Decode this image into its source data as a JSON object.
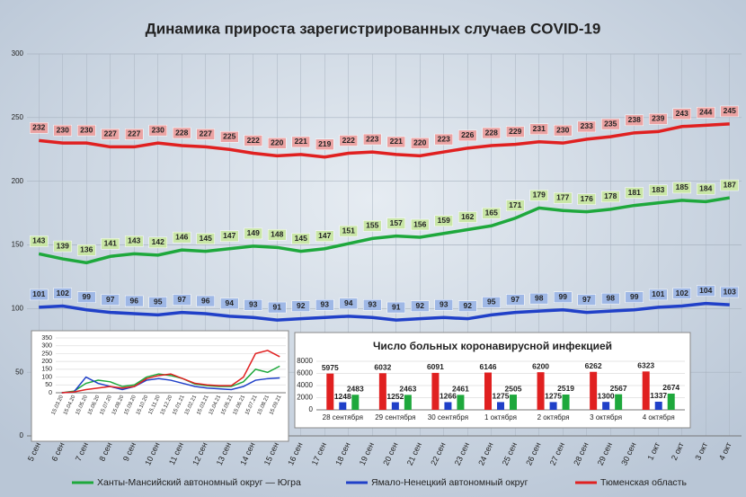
{
  "chart_data": [
    {
      "type": "line",
      "title": "Динамика прироста зарегистрированных случаев COVID-19",
      "categories": [
        "5 сен",
        "6 сен",
        "7 сен",
        "8 сен",
        "9 сен",
        "10 сен",
        "11 сен",
        "12 сен",
        "13 сен",
        "14 сен",
        "15 сен",
        "16 сен",
        "17 сен",
        "18 сен",
        "19 сен",
        "20 сен",
        "21 сен",
        "22 сен",
        "23 сен",
        "24 сен",
        "25 сен",
        "26 сен",
        "27 сен",
        "28 сен",
        "29 сен",
        "30 сен",
        "1 окт",
        "2 окт",
        "3 окт",
        "4 окт"
      ],
      "series": [
        {
          "name": "Ханты-Мансийский автономный округ — Югра",
          "color": "#1ea83c",
          "values": [
            143,
            139,
            136,
            141,
            143,
            142,
            146,
            145,
            147,
            149,
            148,
            145,
            147,
            151,
            155,
            157,
            156,
            159,
            162,
            165,
            171,
            179,
            177,
            176,
            178,
            181,
            183,
            185,
            184,
            187
          ]
        },
        {
          "name": "Ямало-Ненецкий автономный округ",
          "color": "#2040c8",
          "values": [
            101,
            102,
            99,
            97,
            96,
            95,
            97,
            96,
            94,
            93,
            91,
            92,
            93,
            94,
            93,
            91,
            92,
            93,
            92,
            95,
            97,
            98,
            99,
            97,
            98,
            99,
            101,
            102,
            104,
            103
          ]
        },
        {
          "name": "Тюменская область",
          "color": "#e02020",
          "values": [
            232,
            230,
            230,
            227,
            227,
            230,
            228,
            227,
            225,
            222,
            220,
            221,
            219,
            222,
            223,
            221,
            220,
            223,
            226,
            228,
            229,
            231,
            230,
            233,
            235,
            238,
            239,
            243,
            244,
            245
          ]
        }
      ],
      "ylim": [
        0,
        300
      ],
      "yticks": [
        0,
        50,
        100,
        150,
        200,
        250,
        300
      ],
      "grid": true,
      "data_labels": true,
      "legend": "bottom"
    },
    {
      "type": "line",
      "categories": [
        "15.03.20",
        "15.04.20",
        "15.05.20",
        "15.06.20",
        "15.07.20",
        "15.08.20",
        "15.09.20",
        "15.10.20",
        "15.11.20",
        "15.12.20",
        "15.01.21",
        "15.02.21",
        "15.03.21",
        "15.04.21",
        "15.05.21",
        "15.06.21",
        "15.07.21",
        "15.08.21",
        "15.09.21"
      ],
      "series": [
        {
          "color": "#1ea83c",
          "values": [
            0,
            10,
            60,
            80,
            70,
            40,
            50,
            100,
            120,
            110,
            90,
            55,
            45,
            40,
            40,
            70,
            150,
            130,
            170
          ]
        },
        {
          "color": "#2040c8",
          "values": [
            0,
            5,
            100,
            60,
            40,
            20,
            40,
            80,
            90,
            80,
            60,
            40,
            30,
            25,
            20,
            40,
            80,
            90,
            95
          ]
        },
        {
          "color": "#e02020",
          "values": [
            0,
            5,
            20,
            30,
            40,
            30,
            40,
            90,
            110,
            120,
            90,
            60,
            50,
            45,
            45,
            100,
            250,
            270,
            230
          ]
        }
      ],
      "ylim": [
        0,
        350
      ],
      "yticks": [
        0,
        50,
        100,
        150,
        200,
        250,
        300,
        350
      ],
      "grid": true,
      "data_labels": false
    },
    {
      "type": "bar",
      "title": "Число больных коронавирусной  инфекцией",
      "categories": [
        "28 сентября",
        "29 сентября",
        "30 сентября",
        "1 октября",
        "2 октября",
        "3 октября",
        "4 октября"
      ],
      "series": [
        {
          "color": "#e02020",
          "values": [
            5975,
            6032,
            6091,
            6146,
            6200,
            6262,
            6323
          ]
        },
        {
          "color": "#2040c8",
          "values": [
            1248,
            1252,
            1266,
            1275,
            1275,
            1300,
            1337
          ]
        },
        {
          "color": "#1ea83c",
          "values": [
            2483,
            2463,
            2461,
            2505,
            2519,
            2567,
            2674
          ]
        }
      ],
      "ylim": [
        0,
        8000
      ],
      "yticks": [
        0,
        2000,
        4000,
        6000,
        8000
      ],
      "grid": true,
      "data_labels": true
    }
  ]
}
